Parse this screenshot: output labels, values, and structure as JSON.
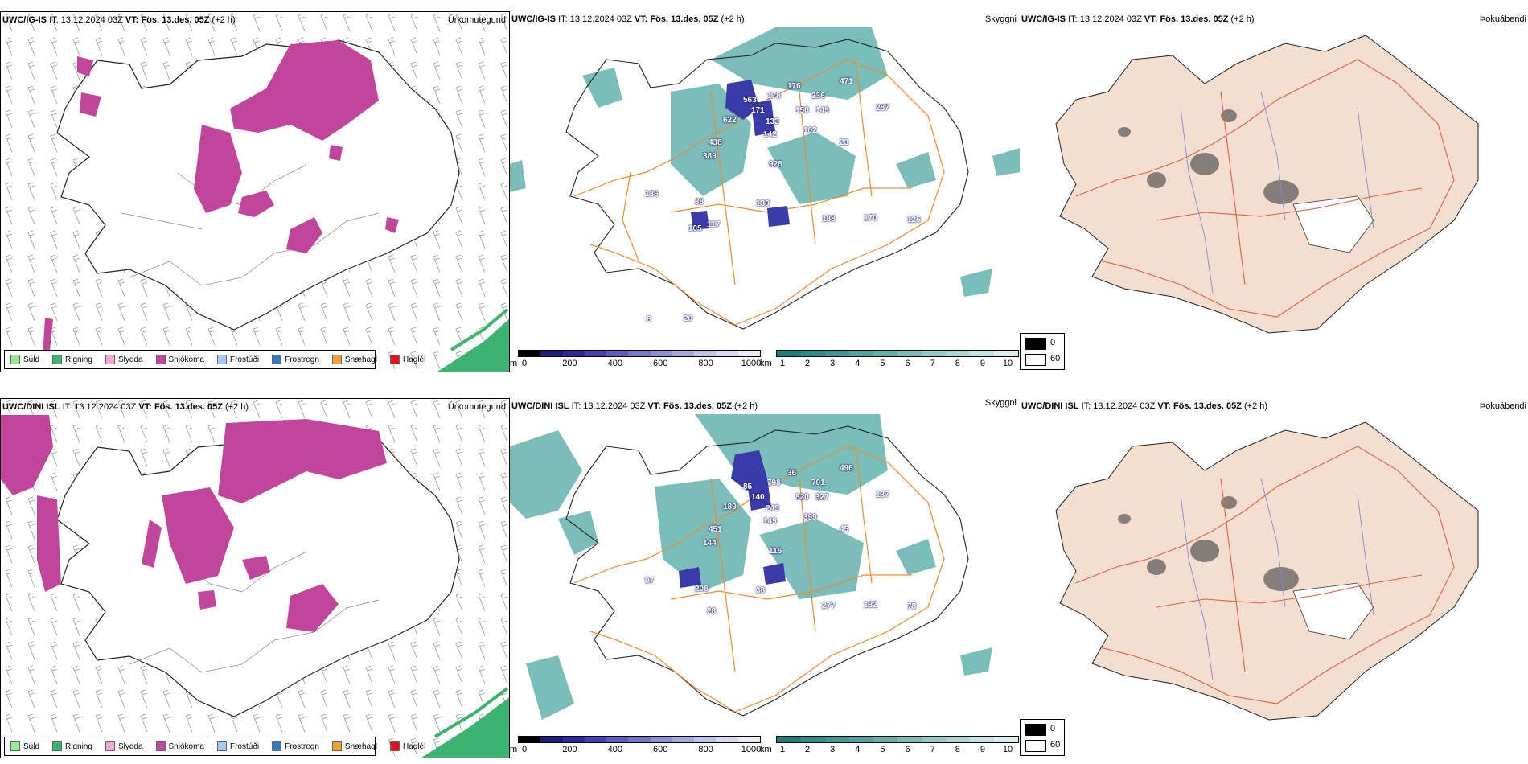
{
  "rows": [
    {
      "model": "UWC/IG-IS",
      "it_label": "IT:",
      "it_time": "13.12.2024 03Z",
      "vt_label": "VT:",
      "vt_time": "Fös. 13.des. 05Z",
      "lead": "(+2 h)",
      "precip_title": "Úrkomutegund",
      "cloud_title": "Skyggni",
      "fog_title": "Þokuábendi",
      "height_labels": [
        "563",
        "178",
        "176",
        "236",
        "471",
        "622",
        "171",
        "133",
        "150",
        "149",
        "142",
        "287",
        "438",
        "102",
        "23",
        "389",
        "928",
        "136",
        "130",
        "38",
        "188",
        "170",
        "125",
        "117",
        "105",
        "8",
        "20"
      ]
    },
    {
      "model": "UWC/DINI ISL",
      "it_label": "IT:",
      "it_time": "13.12.2024 03Z",
      "vt_label": "VT:",
      "vt_time": "Fös. 13.des. 05Z",
      "lead": "(+2 h)",
      "precip_title": "Úrkomutegund",
      "cloud_title": "Skyggni",
      "fog_title": "Þokuábendi",
      "height_labels": [
        "85",
        "798",
        "36",
        "701",
        "496",
        "189",
        "140",
        "249",
        "820",
        "327",
        "149",
        "137",
        "451",
        "399",
        "45",
        "144",
        "116",
        "97",
        "38",
        "208",
        "277",
        "132",
        "78",
        "28"
      ]
    }
  ],
  "precip_legend": [
    {
      "label": "Súld",
      "color": "#90ee90"
    },
    {
      "label": "Rigning",
      "color": "#3cb371"
    },
    {
      "label": "Slydda",
      "color": "#f4a6d7"
    },
    {
      "label": "Snjókoma",
      "color": "#c2459c"
    },
    {
      "label": "Frostúði",
      "color": "#a9c8f5"
    },
    {
      "label": "Frostregn",
      "color": "#3a78c2"
    },
    {
      "label": "Snæhagl",
      "color": "#f0a030"
    },
    {
      "label": "Haglél",
      "color": "#e0141e"
    }
  ],
  "cloud_base_scale": {
    "unit": "m",
    "ticks": [
      "0",
      "200",
      "400",
      "600",
      "800",
      "1000"
    ],
    "colors": [
      "#000000",
      "#1e1e78",
      "#2b2b9a",
      "#4343b0",
      "#5c5cbf",
      "#7676c8",
      "#9090d4",
      "#a8a8de",
      "#c2c2e8",
      "#d8d8f0",
      "#ececf8"
    ]
  },
  "visibility_scale": {
    "unit": "km",
    "ticks": [
      "1",
      "2",
      "3",
      "4",
      "5",
      "6",
      "7",
      "8",
      "9",
      "10"
    ],
    "colors": [
      "#1e7f77",
      "#2e8c84",
      "#3e9891",
      "#52a39d",
      "#67afaa",
      "#7dbcb7",
      "#94c9c5",
      "#abd6d3",
      "#c3e3e1",
      "#dcf0ef"
    ]
  },
  "fog_key": [
    {
      "label": "0",
      "color": "#000000"
    },
    {
      "label": "60",
      "color": "#ffffff"
    }
  ],
  "colors": {
    "snow": "#c2459c",
    "rain": "#3cb371",
    "visibility_teal": "#4ea8a2",
    "cloud_blue": "#3a3aa8",
    "roads": "#f08a30",
    "land_fog": "#f4ded0",
    "fog_roads": "#e06040",
    "rivers": "#7a8ae0"
  }
}
